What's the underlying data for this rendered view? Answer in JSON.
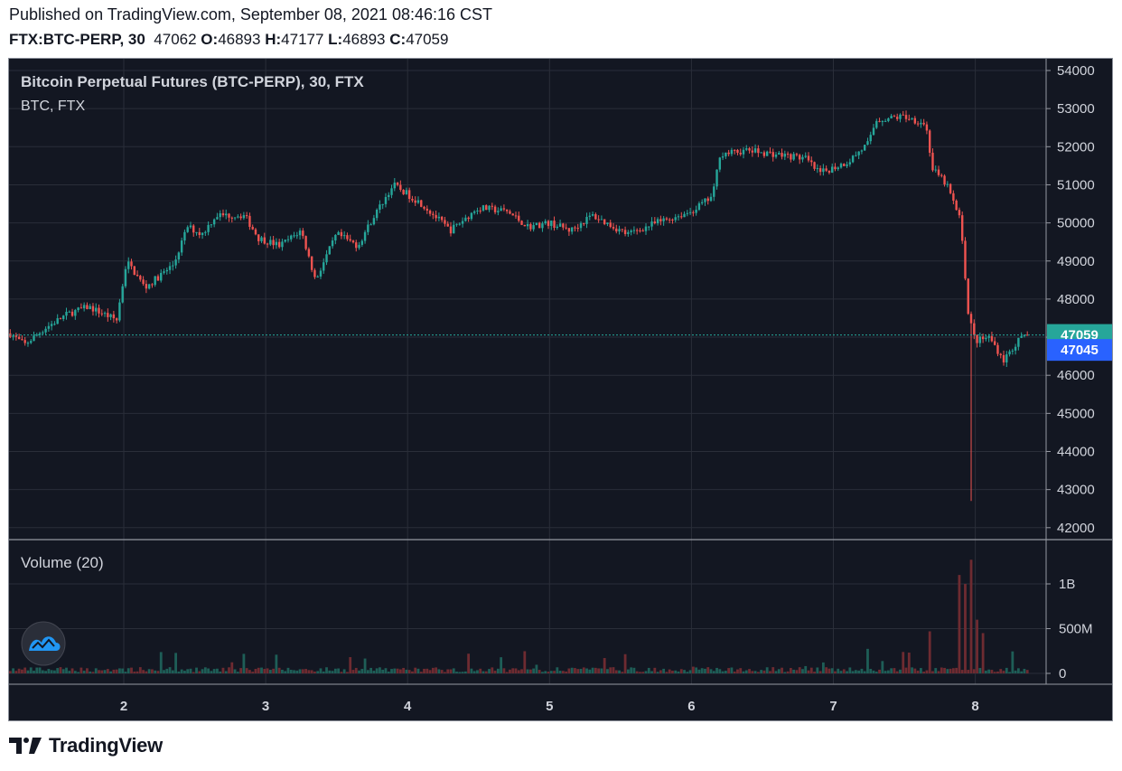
{
  "header": {
    "published": "Published on TradingView.com, September 08, 2021 08:46:16 CST",
    "symbol": "FTX:BTC-PERP, 30",
    "last": "47062",
    "o_label": "O:",
    "o": "46893",
    "h_label": "H:",
    "h": "47177",
    "l_label": "L:",
    "l": "46893",
    "c_label": "C:",
    "c": "47059"
  },
  "legend": {
    "title": "Bitcoin Perpetual Futures (BTC-PERP), 30, FTX",
    "subtitle": "BTC, FTX",
    "volume_title": "Volume (20)"
  },
  "price_axis": {
    "ticks": [
      "54000",
      "53000",
      "52000",
      "51000",
      "50000",
      "49000",
      "48000",
      "47000",
      "46000",
      "45000",
      "44000",
      "43000",
      "42000"
    ],
    "last_price_label": "47059",
    "bid_label": "47045"
  },
  "volume_axis": {
    "ticks": [
      "1B",
      "500M",
      "0"
    ]
  },
  "time_axis": {
    "ticks": [
      "2",
      "3",
      "4",
      "5",
      "6",
      "7",
      "8"
    ]
  },
  "footer": {
    "brand": "TradingView"
  },
  "colors": {
    "up": "#26a69a",
    "down": "#ef5350",
    "background": "#131722",
    "grid": "#2a2e39",
    "axis_text": "#d1d4dc",
    "last_price": "#26a69a",
    "bid": "#2962ff"
  },
  "chart_data": {
    "type": "candlestick",
    "title": "Bitcoin Perpetual Futures (BTC-PERP), 30, FTX",
    "interval": "30",
    "x_day_ticks": [
      2,
      3,
      4,
      5,
      6,
      7,
      8
    ],
    "ylim": [
      41700,
      54300
    ],
    "volume_ylim": [
      0,
      1400000000
    ],
    "last_close": 47059,
    "anchors": [
      {
        "day": 1.2,
        "price": 47100
      },
      {
        "day": 1.3,
        "price": 46800
      },
      {
        "day": 1.45,
        "price": 47250
      },
      {
        "day": 1.6,
        "price": 47600
      },
      {
        "day": 1.75,
        "price": 47800
      },
      {
        "day": 1.95,
        "price": 47450
      },
      {
        "day": 2.02,
        "price": 49000
      },
      {
        "day": 2.15,
        "price": 48300
      },
      {
        "day": 2.35,
        "price": 48900
      },
      {
        "day": 2.45,
        "price": 49900
      },
      {
        "day": 2.55,
        "price": 49700
      },
      {
        "day": 2.65,
        "price": 50200
      },
      {
        "day": 2.85,
        "price": 50200
      },
      {
        "day": 2.95,
        "price": 49600
      },
      {
        "day": 3.1,
        "price": 49400
      },
      {
        "day": 3.25,
        "price": 49800
      },
      {
        "day": 3.35,
        "price": 48500
      },
      {
        "day": 3.5,
        "price": 49700
      },
      {
        "day": 3.65,
        "price": 49400
      },
      {
        "day": 3.75,
        "price": 50100
      },
      {
        "day": 3.9,
        "price": 51000
      },
      {
        "day": 4.1,
        "price": 50500
      },
      {
        "day": 4.3,
        "price": 49800
      },
      {
        "day": 4.5,
        "price": 50400
      },
      {
        "day": 4.7,
        "price": 50300
      },
      {
        "day": 4.85,
        "price": 49900
      },
      {
        "day": 5.0,
        "price": 50000
      },
      {
        "day": 5.15,
        "price": 49800
      },
      {
        "day": 5.3,
        "price": 50200
      },
      {
        "day": 5.55,
        "price": 49700
      },
      {
        "day": 5.75,
        "price": 50000
      },
      {
        "day": 6.0,
        "price": 50300
      },
      {
        "day": 6.15,
        "price": 50700
      },
      {
        "day": 6.2,
        "price": 51800
      },
      {
        "day": 6.4,
        "price": 51900
      },
      {
        "day": 6.6,
        "price": 51800
      },
      {
        "day": 6.8,
        "price": 51700
      },
      {
        "day": 6.9,
        "price": 51300
      },
      {
        "day": 7.1,
        "price": 51600
      },
      {
        "day": 7.25,
        "price": 52100
      },
      {
        "day": 7.3,
        "price": 52700
      },
      {
        "day": 7.5,
        "price": 52800
      },
      {
        "day": 7.65,
        "price": 52600
      },
      {
        "day": 7.7,
        "price": 51400
      },
      {
        "day": 7.8,
        "price": 51000
      },
      {
        "day": 7.9,
        "price": 50000
      },
      {
        "day": 7.95,
        "price": 47600
      },
      {
        "day": 8.0,
        "price": 46900
      },
      {
        "day": 8.1,
        "price": 47000
      },
      {
        "day": 8.2,
        "price": 46400
      },
      {
        "day": 8.3,
        "price": 46900
      },
      {
        "day": 8.38,
        "price": 47059
      }
    ],
    "crash_low": 42700,
    "volume_spikes": [
      {
        "day": 7.67,
        "volume": 470000000
      },
      {
        "day": 7.88,
        "volume": 1100000000
      },
      {
        "day": 7.93,
        "volume": 1000000000
      },
      {
        "day": 7.97,
        "volume": 1270000000
      },
      {
        "day": 8.02,
        "volume": 600000000
      },
      {
        "day": 8.06,
        "volume": 450000000
      }
    ]
  }
}
